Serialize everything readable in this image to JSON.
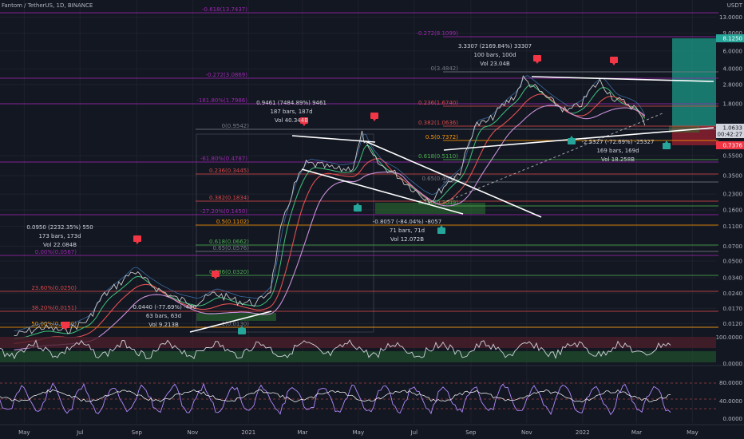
{
  "header": {
    "title": "Fantom / TetherUS, 1D, BINANCE"
  },
  "colors": {
    "bg": "#131722",
    "grid": "#1e222d",
    "fib_purple": "#9c27b0",
    "fib_red": "#d94848",
    "fib_orange": "#ff9800",
    "fib_green": "#4caf50",
    "price": "#c8c8c8",
    "ma_red": "#e05050",
    "ma_green": "#3ec27a",
    "ma_pink": "#c890d8",
    "ma_blue": "#4a90d9"
  },
  "chart_data": [
    {
      "type": "line",
      "title": "Fantom / TetherUS, 1D, BINANCE",
      "scale": "log",
      "ylim": [
        0.009,
        16
      ],
      "x_ticks": [
        "May",
        "Jul",
        "Sep",
        "Nov",
        "2021",
        "Mar",
        "May",
        "Jul",
        "Sep",
        "Nov",
        "2022",
        "Mar",
        "May"
      ],
      "y_ticks": [
        "13.0000",
        "9.0000",
        "6.0000",
        "4.0000",
        "2.8000",
        "1.8000",
        "0.5500",
        "0.3500",
        "0.2300",
        "0.1600",
        "0.1100",
        "0.0700",
        "0.0500",
        "0.0340",
        "0.0240",
        "0.0170",
        "0.0120"
      ],
      "price_tags": [
        {
          "label": "8.1250",
          "color": "#26a69a"
        },
        {
          "label": "1.0633",
          "color": "#d1d4dc"
        },
        {
          "label": "00:42:27",
          "color": "#d1d4dc"
        },
        {
          "label": "0.7376",
          "color": "#f23645"
        }
      ],
      "unit_label": "USDT",
      "series": [
        {
          "x": [
            "2020-04-20",
            "2020-05-20",
            "2020-06-15",
            "2020-07-10",
            "2020-07-25",
            "2020-08-15",
            "2020-08-28",
            "2020-09-10",
            "2020-09-25",
            "2020-10-15",
            "2020-11-05",
            "2020-11-25",
            "2020-12-20",
            "2021-01-10",
            "2021-01-25",
            "2021-02-05",
            "2021-02-20",
            "2021-03-05",
            "2021-03-20",
            "2021-04-10",
            "2021-04-25",
            "2021-05-05",
            "2021-05-12",
            "2021-05-25",
            "2021-06-10",
            "2021-06-25",
            "2021-07-10",
            "2021-07-20",
            "2021-08-05",
            "2021-08-20",
            "2021-09-05",
            "2021-09-20",
            "2021-10-05",
            "2021-10-20",
            "2021-10-28",
            "2021-11-10",
            "2021-11-25",
            "2021-12-15",
            "2021-12-31",
            "2022-01-10",
            "2022-01-20",
            "2022-02-05",
            "2022-02-20",
            "2022-03-01",
            "2022-03-10"
          ],
          "y": [
            0.0091,
            0.011,
            0.0101,
            0.013,
            0.022,
            0.031,
            0.04,
            0.032,
            0.026,
            0.021,
            0.019,
            0.024,
            0.02,
            0.019,
            0.026,
            0.1,
            0.28,
            0.46,
            0.44,
            0.4,
            0.42,
            0.9,
            0.62,
            0.44,
            0.37,
            0.28,
            0.22,
            0.2,
            0.29,
            0.38,
            1.1,
            1.2,
            1.7,
            2.2,
            3.2,
            2.6,
            2.0,
            1.5,
            1.8,
            2.5,
            3.0,
            2.0,
            1.8,
            1.6,
            1.1
          ]
        }
      ],
      "fib_levels_left": [
        "0(0.9542)",
        "0.236(0.3445)",
        "0.382(0.1834)",
        "0.5(0.1102)",
        "0.618(0.0662)",
        "0.65(0.0576)",
        "0.786(0.0320)",
        "1(0.0130)",
        "-0.618(13.7437)",
        "-0.272(3.0869)",
        "-161.80%(1.7986)",
        "-61.80%(0.4787)",
        "-27.20%(0.1450)",
        "0.00%(0.0567)",
        "23.60%(0.0250)",
        "38.20%(0.0151)",
        "50.00%(0.0100)"
      ],
      "fib_levels_right": [
        "0(3.4842)",
        "0.236(1.6740)",
        "0.382(1.0636)",
        "0.5(0.7372)",
        "0.618(0.5110)",
        "0.65(0.4632)",
        "0.786(0.3049)",
        "-0.272(8.1099)"
      ],
      "measures": [
        {
          "lines": [
            "0.0950 (2232.35%) 550",
            "173 bars, 173d",
            "Vol 22.084B"
          ]
        },
        {
          "lines": [
            "0.9461 (7484.89%) 9461",
            "187 bars, 187d",
            "Vol 40.344B"
          ]
        },
        {
          "lines": [
            "3.3307 (2169.84%) 33307",
            "100 bars, 100d",
            "Vol 23.04B"
          ]
        },
        {
          "lines": [
            "-0.0440 (-77.69%) -440",
            "63 bars, 63d",
            "Vol 9.213B"
          ]
        },
        {
          "lines": [
            "-0.8057 (-84.04%) -8057",
            "71 bars, 71d",
            "Vol 12.072B"
          ]
        },
        {
          "lines": [
            "-2.5327 (-72.69%) -25327",
            "169 bars, 169d",
            "Vol 18.258B"
          ]
        }
      ]
    },
    {
      "type": "line",
      "title": "",
      "ylim": [
        0,
        100
      ],
      "y_ticks": [
        "100.0000",
        "0.0000"
      ]
    },
    {
      "type": "line",
      "title": "",
      "ylim": [
        0,
        100
      ],
      "y_ticks": [
        "80.0000",
        "40.0000",
        "0.0000"
      ]
    }
  ]
}
